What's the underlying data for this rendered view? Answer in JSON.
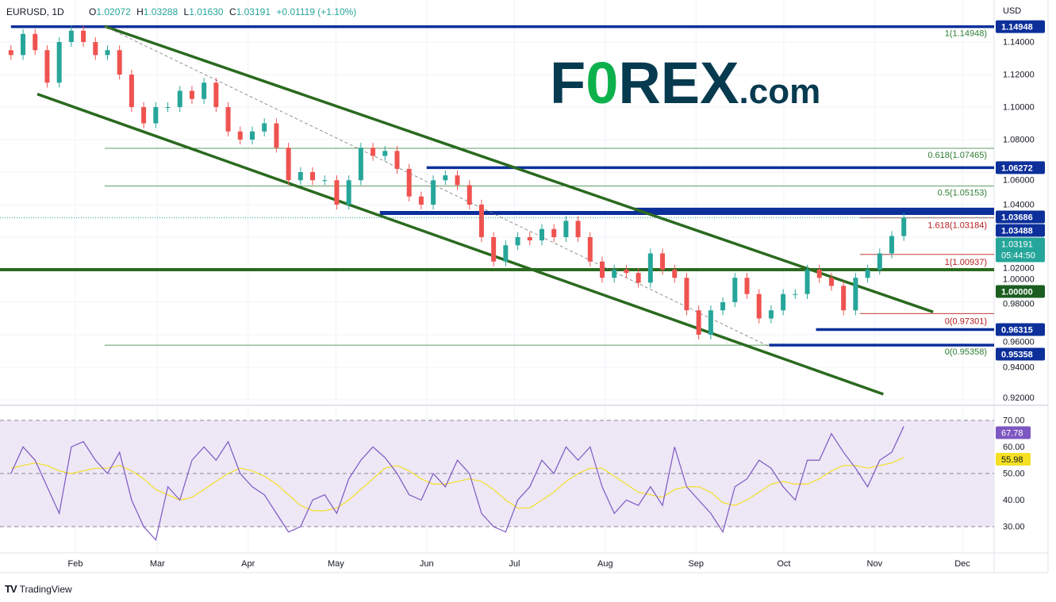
{
  "header": {
    "symbol": "EURUSD, 1D",
    "open_label": "O",
    "open": "1.02072",
    "high_label": "H",
    "high": "1.03288",
    "low_label": "L",
    "low": "1.01630",
    "close_label": "C",
    "close": "1.03191",
    "change": "+0.01119 (+1.10%)"
  },
  "axis_currency": "USD",
  "watermark": {
    "text": "FOREX.com",
    "brand_dark": "#063a4f",
    "brand_green": "#0db14b"
  },
  "footer": {
    "brand": "TradingView",
    "icon": "tradingview-logo-icon"
  },
  "countdown": "05:44:50",
  "colors": {
    "up": "#26a69a",
    "down": "#ef5350",
    "channel": "#2a6a1f",
    "level": "#0c2f9a",
    "rsi": "#7e57c2",
    "rsi_ma": "#f5e024",
    "rsi_band": "#ede7f6"
  },
  "chart_data": [
    {
      "type": "candlestick",
      "title": "EURUSD, 1D",
      "ylim": [
        0.91,
        1.155
      ],
      "yticks": [
        "1.14000",
        "1.12000",
        "1.10000",
        "1.08000",
        "1.06000",
        "1.04000",
        "1.02000",
        "1.00000",
        "0.98000",
        "0.96000",
        "0.94000",
        "0.92000"
      ],
      "xticks": [
        {
          "label": "Feb",
          "date": "2022-02-01"
        },
        {
          "label": "Mar",
          "date": "2022-03-01"
        },
        {
          "label": "Apr",
          "date": "2022-04-01"
        },
        {
          "label": "May",
          "date": "2022-05-01"
        },
        {
          "label": "Jun",
          "date": "2022-06-01"
        },
        {
          "label": "Jul",
          "date": "2022-07-01"
        },
        {
          "label": "Aug",
          "date": "2022-08-01"
        },
        {
          "label": "Sep",
          "date": "2022-09-01"
        },
        {
          "label": "Oct",
          "date": "2022-10-01"
        },
        {
          "label": "Nov",
          "date": "2022-11-01"
        },
        {
          "label": "Dec",
          "date": "2022-12-01"
        }
      ],
      "first_date": "2022-01-10",
      "last_date": "2022-11-11",
      "closes": [
        1.132,
        1.145,
        1.135,
        1.115,
        1.14,
        1.147,
        1.14,
        1.132,
        1.135,
        1.12,
        1.1,
        1.09,
        1.1,
        1.1,
        1.11,
        1.105,
        1.115,
        1.1,
        1.085,
        1.08,
        1.085,
        1.09,
        1.075,
        1.055,
        1.06,
        1.055,
        1.055,
        1.04,
        1.055,
        1.075,
        1.07,
        1.073,
        1.062,
        1.045,
        1.04,
        1.055,
        1.058,
        1.052,
        1.04,
        1.02,
        1.005,
        1.015,
        1.02,
        1.018,
        1.025,
        1.02,
        1.03,
        1.02,
        1.005,
        0.995,
        1.0,
        0.998,
        0.992,
        1.01,
        1.0,
        0.995,
        0.975,
        0.96,
        0.975,
        0.98,
        0.995,
        0.985,
        0.97,
        0.975,
        0.985,
        0.985,
        1.0,
        0.995,
        0.99,
        0.975,
        0.995,
        1.0,
        1.01,
        1.02072,
        1.03191
      ],
      "last_price": "1.03191",
      "levels": [
        {
          "price": 1.14948,
          "label": "1.14948",
          "from": "2022-01-10",
          "kind": "level"
        },
        {
          "price": 1.06272,
          "label": "1.06272",
          "from": "2022-06-01",
          "kind": "level"
        },
        {
          "price": 1.03686,
          "label": "1.03686",
          "from": "2022-08-11",
          "kind": "level"
        },
        {
          "price": 1.03488,
          "label": "1.03488",
          "from": "2022-05-16",
          "kind": "level"
        },
        {
          "price": 1.0,
          "label": "1.00000",
          "from": "2022-01-10",
          "kind": "parity"
        },
        {
          "price": 0.96315,
          "label": "0.96315",
          "from": "2022-10-12",
          "kind": "level"
        },
        {
          "price": 0.95358,
          "label": "0.95358",
          "from": "2022-09-26",
          "kind": "level"
        }
      ],
      "fib_green": [
        {
          "price": 1.14948,
          "label": "1(1.14948)"
        },
        {
          "price": 1.07465,
          "label": "0.618(1.07465)"
        },
        {
          "price": 1.05153,
          "label": "0.5(1.05153)"
        },
        {
          "price": 0.95358,
          "label": "0(0.95358)"
        }
      ],
      "fib_red": [
        {
          "price": 1.03184,
          "label": "1.618(1.03184)"
        },
        {
          "price": 1.00937,
          "label": "1(1.00937)"
        },
        {
          "price": 0.97301,
          "label": "0(0.97301)"
        }
      ],
      "fib_green_from": "2022-02-11",
      "fib_red_from": "2022-10-27",
      "trendlines": [
        {
          "style": "solid",
          "from": [
            "2022-02-11",
            1.1497
          ],
          "to": [
            "2022-11-21",
            0.974
          ]
        },
        {
          "style": "solid",
          "from": [
            "2022-01-19",
            1.108
          ],
          "to": [
            "2022-11-04",
            0.9234
          ]
        },
        {
          "style": "dashed",
          "from": [
            "2022-02-11",
            1.1497
          ],
          "to": [
            "2022-09-26",
            0.9527
          ]
        }
      ]
    },
    {
      "type": "line",
      "title": "RSI",
      "ylim": [
        20,
        75
      ],
      "yticks": [
        "70.00",
        "60.00",
        "50.00",
        "40.00",
        "30.00"
      ],
      "band": [
        30,
        70
      ],
      "series": [
        {
          "values": [
            50,
            60,
            55,
            45,
            35,
            60,
            62,
            55,
            50,
            58,
            40,
            30,
            25,
            45,
            40,
            55,
            60,
            55,
            62,
            50,
            45,
            42,
            35,
            28,
            30,
            40,
            42,
            35,
            48,
            55,
            60,
            56,
            50,
            42,
            40,
            50,
            45,
            55,
            50,
            35,
            30,
            28,
            40,
            45,
            55,
            50,
            60,
            55,
            60,
            45,
            35,
            40,
            38,
            45,
            38,
            60,
            45,
            40,
            35,
            28,
            45,
            48,
            55,
            52,
            45,
            40,
            55,
            55,
            65,
            58,
            52,
            45,
            55,
            58,
            67.78
          ],
          "last": "67.78"
        },
        {
          "values": [
            52,
            53,
            54,
            53,
            51,
            50,
            51,
            52,
            52,
            53,
            51,
            48,
            44,
            42,
            40,
            41,
            44,
            47,
            50,
            52,
            51,
            49,
            46,
            42,
            38,
            36,
            36,
            37,
            40,
            44,
            48,
            52,
            53,
            51,
            48,
            46,
            46,
            47,
            48,
            47,
            44,
            40,
            37,
            37,
            40,
            43,
            47,
            50,
            52,
            52,
            49,
            46,
            43,
            42,
            41,
            44,
            45,
            45,
            43,
            39,
            38,
            40,
            43,
            46,
            47,
            46,
            46,
            48,
            51,
            53,
            53,
            52,
            53,
            54,
            55.98
          ],
          "last": "55.98"
        }
      ]
    }
  ]
}
